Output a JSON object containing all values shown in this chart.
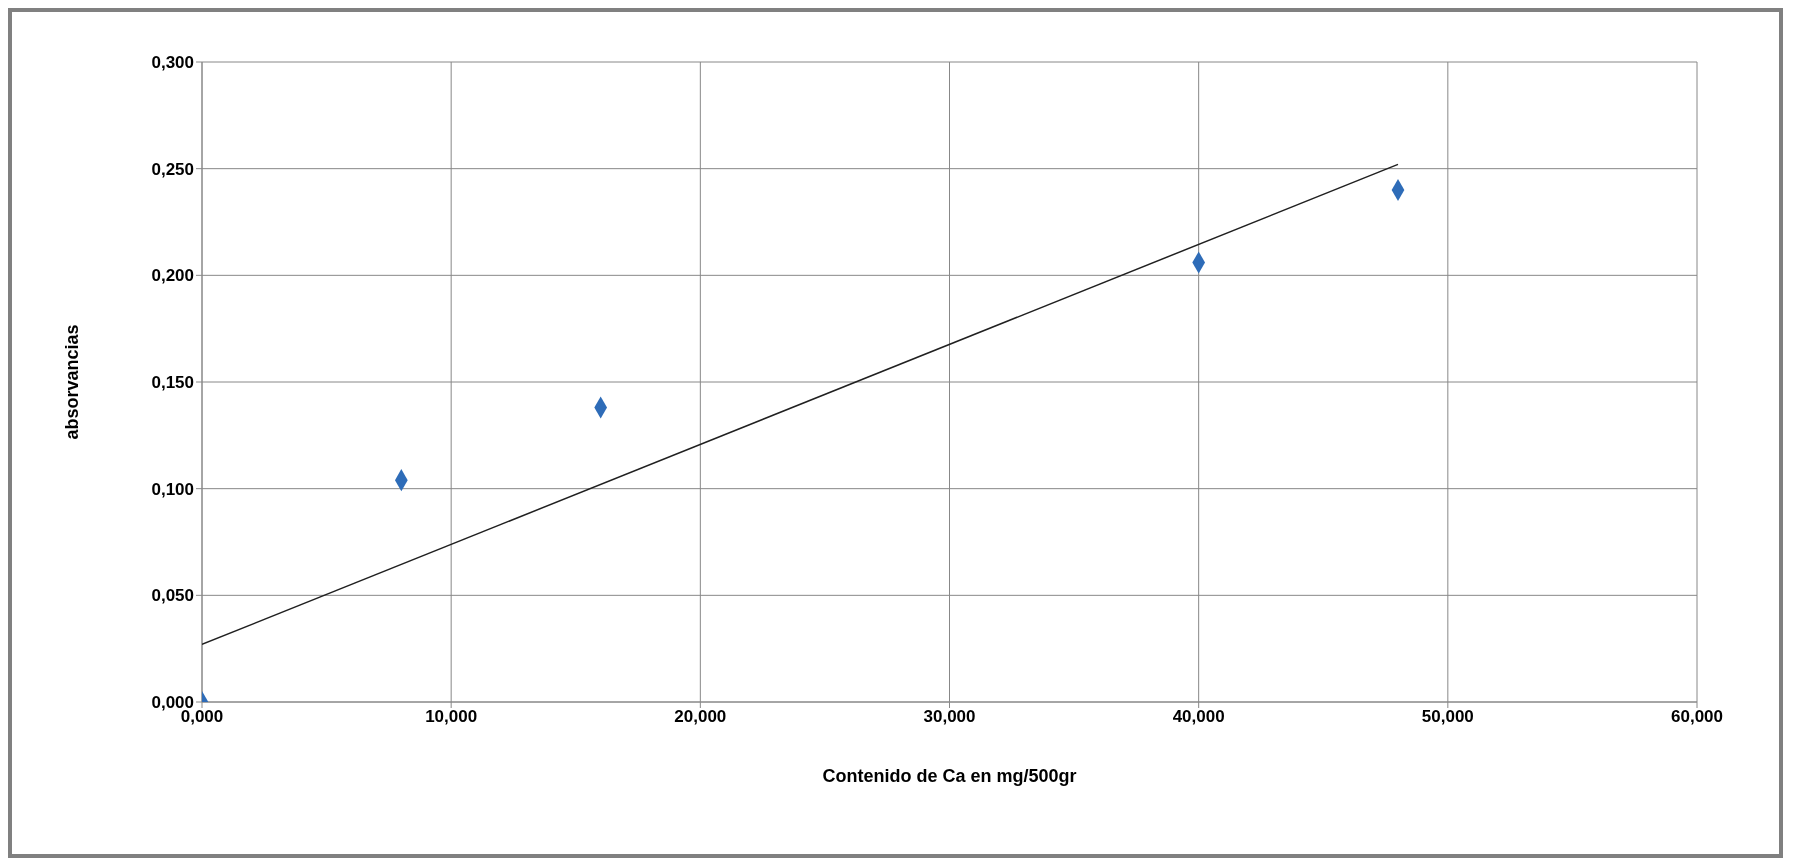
{
  "chart_data": {
    "type": "scatter",
    "xlabel": "Contenido de Ca en mg/500gr",
    "ylabel": "absorvancias",
    "series": [
      {
        "type": "scatter",
        "color": "#2e6cb8",
        "marker": "diamond",
        "x": [
          0,
          8,
          16,
          40,
          48
        ],
        "values": [
          0,
          0.104,
          0.138,
          0.206,
          0.24
        ]
      },
      {
        "type": "line",
        "color": "#202020",
        "marker": "none",
        "x": [
          0,
          48
        ],
        "values": [
          0.027,
          0.252
        ]
      }
    ],
    "xlim": [
      0,
      60
    ],
    "ylim": [
      0,
      0.3
    ],
    "xticks": [
      {
        "value": 0,
        "label": "0,000"
      },
      {
        "value": 10,
        "label": "10,000"
      },
      {
        "value": 20,
        "label": "20,000"
      },
      {
        "value": 30,
        "label": "30,000"
      },
      {
        "value": 40,
        "label": "40,000"
      },
      {
        "value": 50,
        "label": "50,000"
      },
      {
        "value": 60,
        "label": "60,000"
      }
    ],
    "yticks": [
      {
        "value": 0,
        "label": "0,000"
      },
      {
        "value": 0.05,
        "label": "0,050"
      },
      {
        "value": 0.1,
        "label": "0,100"
      },
      {
        "value": 0.15,
        "label": "0,150"
      },
      {
        "value": 0.2,
        "label": "0,200"
      },
      {
        "value": 0.25,
        "label": "0,250"
      },
      {
        "value": 0.3,
        "label": "0,300"
      }
    ],
    "grid": true
  }
}
